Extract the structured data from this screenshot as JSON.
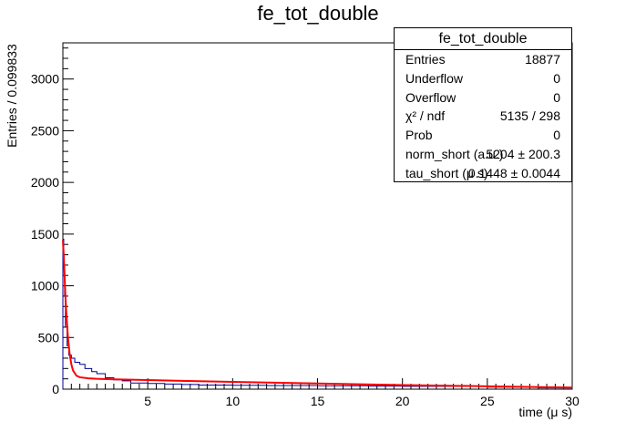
{
  "chart_data": {
    "type": "histogram",
    "title": "fe_tot_double",
    "xlabel": "time (μ s)",
    "ylabel": "Entries / 0.099833",
    "xlim": [
      0,
      30
    ],
    "ylim": [
      0,
      3350
    ],
    "xticks": [
      5,
      10,
      15,
      20,
      25,
      30
    ],
    "yticks": [
      0,
      500,
      1000,
      1500,
      2000,
      2500,
      3000
    ],
    "grid": false,
    "legend": "none",
    "series": [
      {
        "style": "step",
        "color": "#000099",
        "x": [
          0.05,
          0.1,
          0.15,
          0.25,
          0.35,
          0.5,
          0.7,
          1.0,
          1.3,
          1.7,
          2.0,
          2.5,
          3.0,
          3.5,
          4.0,
          5.0,
          6.0,
          7.0,
          8.0,
          10.0,
          12.0,
          15.0,
          18.0,
          20.0,
          25.0,
          28.0,
          30.0
        ],
        "y": [
          1450,
          1200,
          900,
          600,
          420,
          330,
          300,
          260,
          240,
          200,
          170,
          150,
          110,
          90,
          80,
          60,
          55,
          50,
          45,
          40,
          38,
          35,
          33,
          30,
          28,
          20,
          12
        ]
      },
      {
        "style": "line",
        "color": "#ff0000",
        "x": [
          0.0,
          0.05,
          0.1,
          0.15,
          0.2,
          0.3,
          0.4,
          0.5,
          0.6,
          0.8,
          1.0,
          1.5,
          2.0,
          3.0,
          4.0,
          5.0,
          7.0,
          10.0,
          15.0,
          20.0,
          25.0,
          30.0
        ],
        "y": [
          1440,
          1300,
          1100,
          900,
          740,
          500,
          340,
          240,
          180,
          130,
          115,
          105,
          100,
          95,
          92,
          88,
          80,
          70,
          55,
          40,
          28,
          15
        ]
      }
    ],
    "stats_box": {
      "title": "fe_tot_double",
      "rows": [
        {
          "label": "Entries",
          "value": "18877"
        },
        {
          "label": "Underflow",
          "value": "0"
        },
        {
          "label": "Overflow",
          "value": "0"
        },
        {
          "label": "χ² / ndf",
          "value": "5135 / 298"
        },
        {
          "label": "Prob",
          "value": "0"
        },
        {
          "label": "norm_short (a.u.)",
          "value": "5204 ± 200.3"
        },
        {
          "label": "tau_short (μ s)",
          "value": "0.1448 ± 0.0044"
        }
      ]
    }
  }
}
